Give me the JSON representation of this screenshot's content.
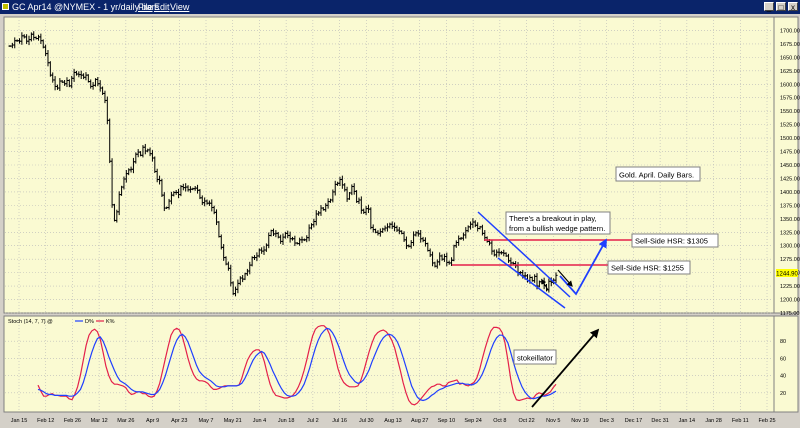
{
  "window": {
    "title": "GC Apr14 @NYMEX - 1 yr/daily bars",
    "menus": [
      "File",
      "Edit",
      "View"
    ],
    "buttons": [
      "_",
      "□",
      "x"
    ]
  },
  "colors": {
    "panel_bg": "#fafad2",
    "bar": "#000000",
    "trend_blue": "#1f3fff",
    "resistance_red": "#e4204a",
    "arrow_black": "#000000",
    "stoch_k": "#e4204a",
    "stoch_d": "#1f3fff",
    "price_tag_bg": "#ffff00"
  },
  "chart_data": [
    {
      "type": "bar",
      "subtype": "ohlc",
      "ylim": [
        1175,
        1725
      ],
      "y_ticks": [
        1175,
        1200,
        1225,
        1250,
        1275,
        1300,
        1325,
        1350,
        1375,
        1400,
        1425,
        1450,
        1475,
        1500,
        1525,
        1550,
        1575,
        1600,
        1625,
        1650,
        1675,
        1700
      ],
      "x_tick_labels": [
        "Jan 15",
        "Feb 12",
        "Feb 26",
        "Mar 12",
        "Mar 26",
        "Apr 9",
        "Apr 23",
        "May 7",
        "May 21",
        "Jun 4",
        "Jun 18",
        "Jul 2",
        "Jul 16",
        "Jul 30",
        "Aug 13",
        "Aug 27",
        "Sep 10",
        "Sep 24",
        "Oct 8",
        "Oct 22",
        "Nov 5",
        "Nov 19",
        "Dec 3",
        "Dec 17",
        "Dec 31",
        "Jan 14",
        "Jan 28",
        "Feb 11",
        "Feb 25"
      ],
      "last_price_label": "1244.90",
      "grid": true,
      "closes": [
        1671,
        1673,
        1681,
        1681,
        1680,
        1690,
        1688,
        1680,
        1683,
        1693,
        1687,
        1685,
        1688,
        1681,
        1669,
        1657,
        1640,
        1617,
        1608,
        1596,
        1593,
        1606,
        1604,
        1601,
        1607,
        1597,
        1611,
        1622,
        1619,
        1618,
        1617,
        1613,
        1617,
        1605,
        1596,
        1598,
        1609,
        1601,
        1593,
        1583,
        1570,
        1533,
        1457,
        1376,
        1347,
        1363,
        1395,
        1409,
        1424,
        1434,
        1441,
        1442,
        1456,
        1470,
        1474,
        1468,
        1483,
        1476,
        1478,
        1471,
        1463,
        1438,
        1423,
        1421,
        1394,
        1370,
        1371,
        1383,
        1394,
        1399,
        1399,
        1395,
        1410,
        1408,
        1409,
        1404,
        1405,
        1406,
        1407,
        1403,
        1389,
        1380,
        1383,
        1379,
        1379,
        1371,
        1362,
        1344,
        1317,
        1297,
        1278,
        1266,
        1258,
        1231,
        1211,
        1219,
        1230,
        1240,
        1238,
        1248,
        1253,
        1264,
        1278,
        1278,
        1281,
        1292,
        1290,
        1292,
        1301,
        1319,
        1328,
        1322,
        1323,
        1316,
        1308,
        1316,
        1323,
        1319,
        1313,
        1313,
        1305,
        1304,
        1311,
        1311,
        1311,
        1315,
        1333,
        1339,
        1345,
        1359,
        1361,
        1370,
        1367,
        1375,
        1382,
        1385,
        1400,
        1414,
        1416,
        1423,
        1413,
        1404,
        1387,
        1398,
        1410,
        1401,
        1382,
        1385,
        1366,
        1362,
        1369,
        1368,
        1334,
        1330,
        1325,
        1323,
        1326,
        1331,
        1333,
        1335,
        1340,
        1336,
        1334,
        1329,
        1327,
        1323,
        1311,
        1300,
        1299,
        1306,
        1320,
        1324,
        1322,
        1313,
        1310,
        1304,
        1291,
        1283,
        1268,
        1262,
        1270,
        1281,
        1275,
        1280,
        1269,
        1268,
        1273,
        1300,
        1306,
        1313,
        1314,
        1320,
        1328,
        1335,
        1340,
        1344,
        1338,
        1332,
        1335,
        1323,
        1315,
        1308,
        1305,
        1290,
        1283,
        1288,
        1287,
        1287,
        1286,
        1281,
        1272,
        1268,
        1267,
        1263,
        1250,
        1250,
        1244,
        1244,
        1235,
        1241,
        1235,
        1243,
        1225,
        1233,
        1234,
        1226,
        1218,
        1234,
        1232,
        1236,
        1245
      ],
      "annotations": [
        "Gold. April. Daily Bars.",
        "There's a breakout in play, from a bullish wedge pattern.",
        "Sell-Side HSR: $1305",
        "Sell-Side HSR: $1255"
      ],
      "levels": [
        {
          "label": "Sell-Side HSR: $1305",
          "value": 1305
        },
        {
          "label": "Sell-Side HSR: $1255",
          "value": 1255
        }
      ]
    },
    {
      "type": "line",
      "indicator_label": "Stoch (14, 7, 7) @",
      "legend": [
        "D%",
        "K%"
      ],
      "ylim": [
        0,
        100
      ],
      "y_ticks": [
        20,
        40,
        60,
        80
      ],
      "annotation": "stokeillator",
      "series": [
        {
          "name": "K%",
          "values": [
            29,
            22,
            16,
            16,
            18,
            19,
            17,
            17,
            16,
            16,
            16,
            13,
            12,
            18,
            27,
            41,
            58,
            75,
            87,
            92,
            94,
            91,
            82,
            67,
            51,
            40,
            33,
            30,
            30,
            29,
            28,
            26,
            21,
            18,
            19,
            21,
            21,
            19,
            19,
            16,
            15,
            16,
            22,
            31,
            45,
            60,
            74,
            87,
            93,
            95,
            93,
            85,
            73,
            60,
            49,
            41,
            36,
            34,
            34,
            33,
            31,
            27,
            24,
            24,
            25,
            27,
            28,
            28,
            28,
            28,
            28,
            29,
            37,
            48,
            58,
            64,
            68,
            70,
            70,
            66,
            56,
            42,
            30,
            22,
            17,
            16,
            15,
            14,
            14,
            15,
            17,
            21,
            27,
            35,
            46,
            59,
            73,
            86,
            94,
            97,
            98,
            98,
            95,
            88,
            76,
            62,
            48,
            38,
            32,
            29,
            27,
            27,
            27,
            28,
            34,
            44,
            56,
            68,
            78,
            86,
            90,
            92,
            93,
            91,
            87,
            81,
            72,
            59,
            46,
            32,
            20,
            11,
            7,
            6,
            8,
            12,
            16,
            20,
            24,
            27,
            28,
            30,
            30,
            28,
            28,
            32,
            33,
            34,
            35,
            30,
            31,
            29,
            28,
            30,
            32,
            37,
            47,
            60,
            72,
            83,
            92,
            96,
            96,
            95,
            90,
            78,
            58,
            36,
            20,
            12,
            11,
            12,
            13,
            14,
            13,
            14,
            18,
            20,
            19,
            17,
            19,
            21,
            26,
            30
          ]
        },
        {
          "name": "D%",
          "values": [
            24,
            23,
            21,
            19,
            18,
            18,
            17,
            17,
            17,
            17,
            17,
            16,
            16,
            17,
            20,
            24,
            32,
            43,
            56,
            67,
            76,
            83,
            85,
            80,
            72,
            62,
            54,
            46,
            39,
            34,
            32,
            30,
            27,
            24,
            22,
            21,
            21,
            21,
            20,
            19,
            18,
            18,
            20,
            24,
            31,
            40,
            51,
            62,
            73,
            81,
            86,
            88,
            85,
            79,
            70,
            61,
            52,
            45,
            41,
            38,
            36,
            34,
            31,
            28,
            27,
            27,
            27,
            28,
            28,
            28,
            28,
            29,
            31,
            36,
            43,
            51,
            58,
            63,
            66,
            68,
            66,
            60,
            53,
            45,
            38,
            31,
            25,
            20,
            17,
            16,
            16,
            17,
            20,
            24,
            30,
            39,
            49,
            61,
            72,
            81,
            88,
            92,
            95,
            94,
            90,
            84,
            76,
            67,
            57,
            48,
            41,
            37,
            33,
            31,
            32,
            35,
            40,
            47,
            56,
            64,
            72,
            79,
            84,
            87,
            88,
            87,
            84,
            79,
            71,
            61,
            50,
            39,
            28,
            21,
            15,
            12,
            11,
            12,
            14,
            17,
            19,
            22,
            24,
            25,
            27,
            28,
            29,
            30,
            31,
            31,
            31,
            30,
            30,
            29,
            30,
            32,
            36,
            42,
            50,
            60,
            70,
            78,
            84,
            87,
            87,
            84,
            78,
            67,
            55,
            44,
            35,
            27,
            21,
            17,
            14,
            13,
            14,
            15,
            16,
            16,
            17,
            18,
            20,
            22
          ]
        }
      ]
    }
  ]
}
